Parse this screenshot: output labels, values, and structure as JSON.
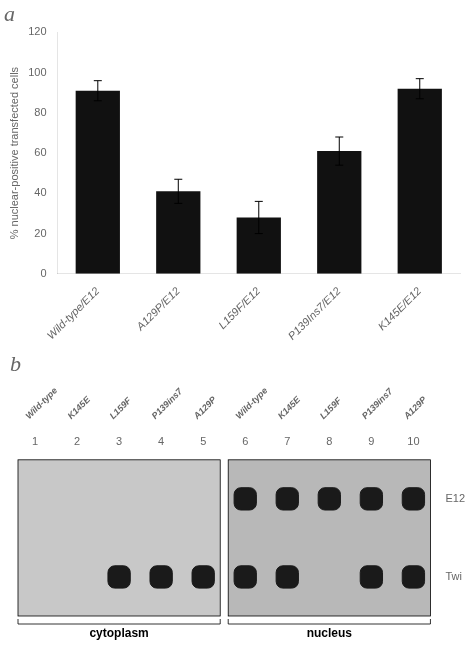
{
  "chart_data": [
    {
      "type": "bar",
      "title": "a",
      "categories": [
        "Wild-type/E12",
        "A129P/E12",
        "L159F/E12",
        "P139Ins7/E12",
        "K145E/E12"
      ],
      "values": [
        91,
        41,
        28,
        61,
        92
      ],
      "errors": [
        5,
        6,
        8,
        7,
        5
      ],
      "ylabel": "% nuclear-positive transfected cells",
      "ylim": [
        0,
        120
      ],
      "yticks": [
        0,
        20,
        40,
        60,
        80,
        100,
        120
      ],
      "color": "#111111",
      "grid": false
    },
    {
      "type": "gel",
      "title": "b",
      "groups": [
        {
          "name": "cytoplasm",
          "color": "#c8c8c8",
          "categories": [
            "1",
            "2",
            "3",
            "4",
            "5"
          ],
          "lane_names": [
            "Wild-type",
            "K145E",
            "L159F",
            "P139ins7",
            "A129P"
          ]
        },
        {
          "name": "nucleus",
          "color": "#b8b8b8",
          "categories": [
            "6",
            "7",
            "8",
            "9",
            "10"
          ],
          "lane_names": [
            "Wild-type",
            "K145E",
            "L159F",
            "P139ins7",
            "A129P"
          ]
        }
      ],
      "series": [
        {
          "name": "E12",
          "color": "#1a1a1a",
          "lanes": [
            "6",
            "7",
            "8",
            "9",
            "10"
          ]
        },
        {
          "name": "Twi",
          "color": "#1a1a1a",
          "lanes": [
            "3",
            "4",
            "5",
            "6",
            "7",
            "9",
            "10"
          ]
        }
      ],
      "grid": false
    }
  ]
}
